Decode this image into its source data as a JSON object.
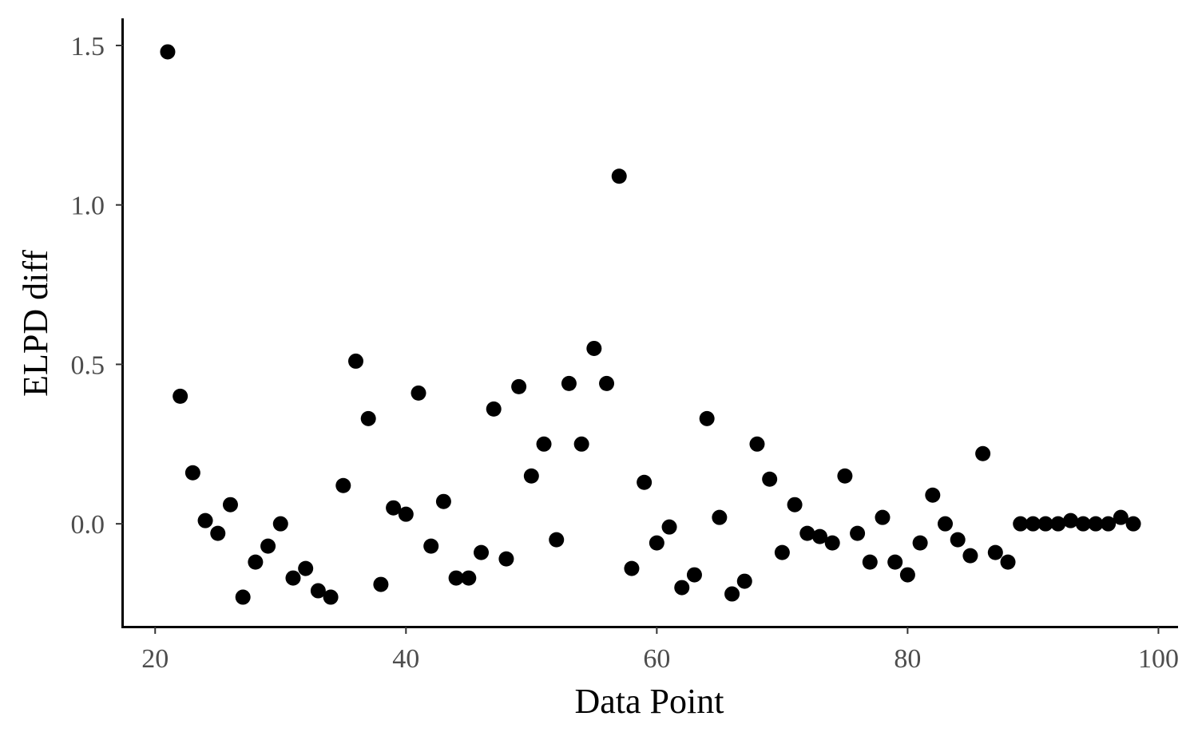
{
  "chart_data": {
    "type": "scatter",
    "title": "",
    "xlabel": "Data Point",
    "ylabel": "ELPD diff",
    "xlim": [
      17.5,
      101.5
    ],
    "ylim": [
      -0.32,
      1.58
    ],
    "x_ticks": [
      20,
      40,
      60,
      80,
      100
    ],
    "x_tick_labels": [
      "20",
      "40",
      "60",
      "80",
      "100"
    ],
    "y_ticks": [
      0.0,
      0.5,
      1.0,
      1.5
    ],
    "y_tick_labels": [
      "0.0",
      "0.5",
      "1.0",
      "1.5"
    ],
    "grid": false,
    "legend": "none",
    "point_color": "#000000",
    "series": [
      {
        "x": [
          21,
          22,
          23,
          24,
          25,
          26,
          27,
          28,
          29,
          30,
          31,
          32,
          33,
          34,
          35,
          36,
          37,
          38,
          39,
          40,
          41,
          42,
          43,
          44,
          45,
          46,
          47,
          48,
          49,
          50,
          51,
          52,
          53,
          54,
          55,
          56,
          57,
          58,
          59,
          60,
          61,
          62,
          63,
          64,
          65,
          66,
          67,
          68,
          69,
          70,
          71,
          72,
          73,
          74,
          75,
          76,
          77,
          78,
          79,
          80,
          81,
          82,
          83,
          84,
          85,
          86,
          87,
          88,
          89,
          90,
          91,
          92,
          93,
          94,
          95,
          96,
          97,
          98
        ],
        "y": [
          1.48,
          0.4,
          0.16,
          0.01,
          -0.03,
          0.06,
          -0.23,
          -0.12,
          -0.07,
          0.0,
          -0.17,
          -0.14,
          -0.21,
          -0.23,
          0.12,
          0.51,
          0.33,
          -0.19,
          0.05,
          0.03,
          0.41,
          -0.07,
          0.07,
          -0.17,
          -0.17,
          -0.09,
          0.36,
          -0.11,
          0.43,
          0.15,
          0.25,
          -0.05,
          0.44,
          0.25,
          0.55,
          0.44,
          1.09,
          -0.14,
          0.13,
          -0.06,
          -0.01,
          -0.2,
          -0.16,
          0.33,
          0.02,
          -0.22,
          -0.18,
          0.25,
          0.14,
          -0.09,
          0.06,
          -0.03,
          -0.04,
          -0.06,
          0.15,
          -0.03,
          -0.12,
          0.02,
          -0.12,
          -0.16,
          -0.06,
          0.09,
          0.0,
          -0.05,
          -0.1,
          0.22,
          -0.09,
          -0.12,
          0.0,
          0.0,
          0.0,
          0.0,
          0.01,
          0.0,
          0.0,
          0.0,
          0.02,
          0.0
        ]
      }
    ]
  }
}
